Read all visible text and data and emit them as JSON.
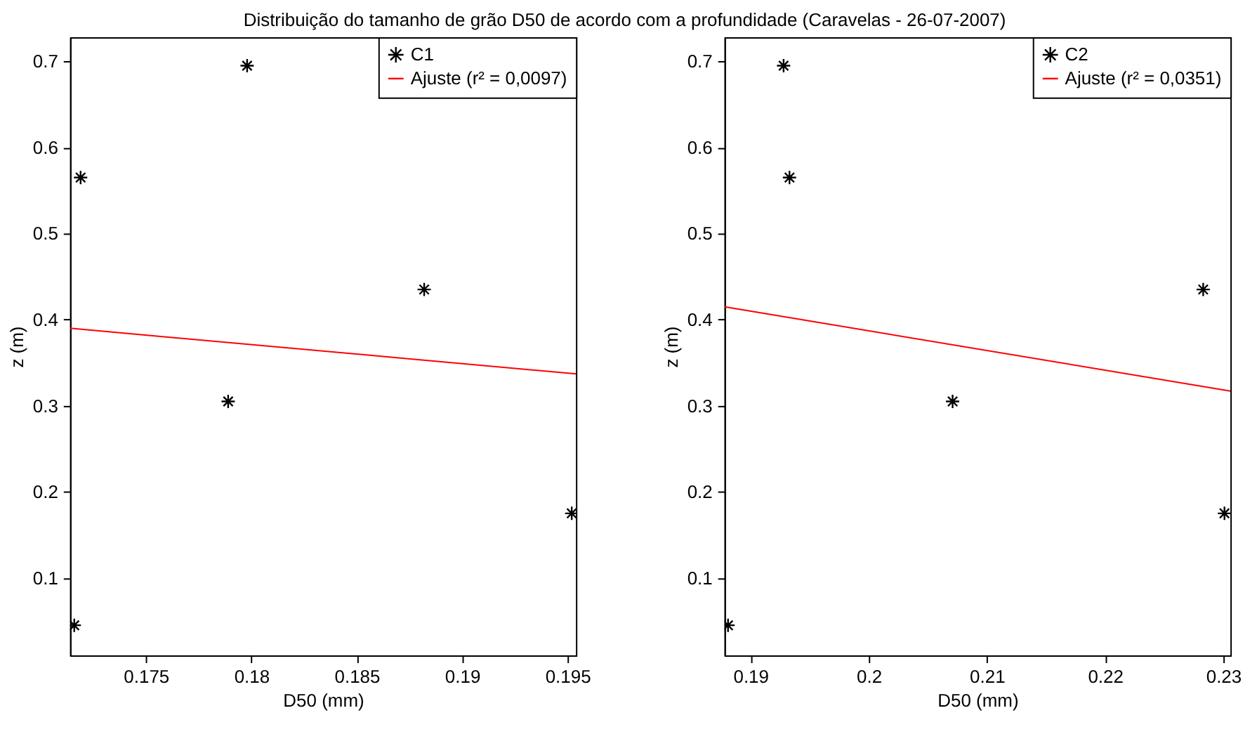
{
  "chart_data": [
    {
      "type": "scatter",
      "title": "Distribuição do tamanho de grão D50 de acordo com a profundidade (Caravelas - 26-07-2007)",
      "xlabel": "D50 (mm)",
      "ylabel": "z (m)",
      "xlim": [
        0.1714,
        0.1954
      ],
      "ylim": [
        0.01,
        0.728
      ],
      "xticks": [
        0.175,
        0.18,
        0.185,
        0.19,
        0.195
      ],
      "yticks": [
        0.1,
        0.2,
        0.3,
        0.4,
        0.5,
        0.6,
        0.7
      ],
      "grid": false,
      "legend": "top right",
      "series": [
        {
          "name": "C1",
          "color": "#000000",
          "marker": "cross",
          "x": [
            0.1716,
            0.1719,
            0.1798,
            0.1789,
            0.1882,
            0.1952
          ],
          "values": [
            0.045,
            0.565,
            0.695,
            0.305,
            0.435,
            0.175
          ]
        },
        {
          "name": "Ajuste (r² = 0,0097)",
          "type": "line",
          "color": "#ff0000",
          "marker": "none",
          "x": [
            0.1714,
            0.1954
          ],
          "values": [
            0.39,
            0.337
          ]
        }
      ]
    },
    {
      "type": "scatter",
      "xlabel": "D50 (mm)",
      "ylabel": "z (m)",
      "xlim": [
        0.1878,
        0.2306
      ],
      "ylim": [
        0.01,
        0.728
      ],
      "xticks": [
        0.19,
        0.2,
        0.21,
        0.22,
        0.23
      ],
      "yticks": [
        0.1,
        0.2,
        0.3,
        0.4,
        0.5,
        0.6,
        0.7
      ],
      "grid": false,
      "legend": "top right",
      "series": [
        {
          "name": "C2",
          "color": "#000000",
          "marker": "cross",
          "x": [
            0.1881,
            0.1928,
            0.1933,
            0.2071,
            0.2283,
            0.2301
          ],
          "values": [
            0.045,
            0.695,
            0.565,
            0.305,
            0.435,
            0.175
          ]
        },
        {
          "name": "Ajuste (r² = 0,0351)",
          "type": "line",
          "color": "#ff0000",
          "marker": "none",
          "x": [
            0.1878,
            0.2306
          ],
          "values": [
            0.415,
            0.317
          ]
        }
      ]
    }
  ]
}
